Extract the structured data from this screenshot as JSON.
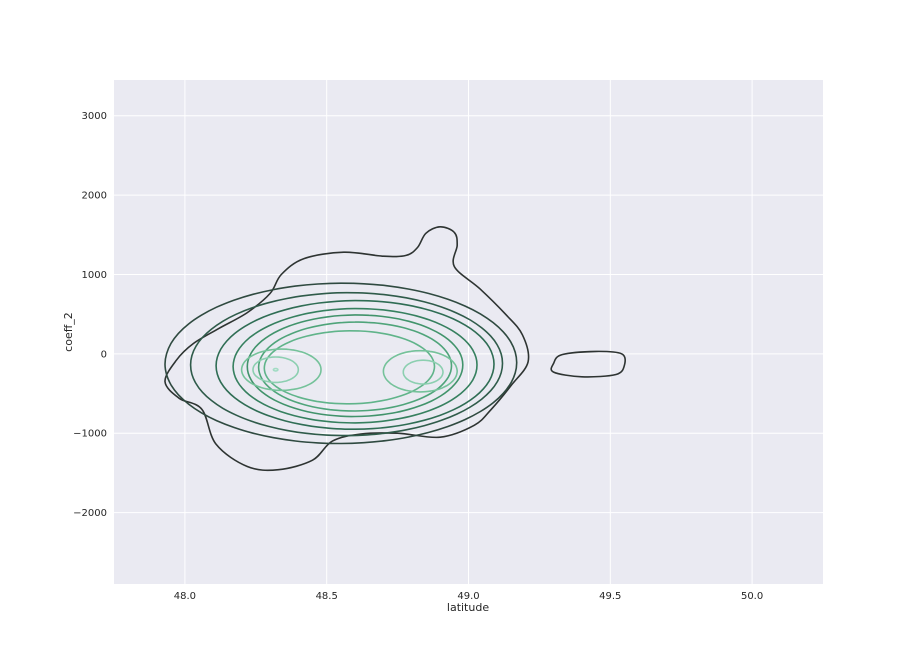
{
  "chart_data": {
    "type": "contour",
    "kind": "bivariate kde",
    "title": "",
    "xlabel": "latitude",
    "ylabel": "coeff_2",
    "xlim": [
      47.75,
      50.25
    ],
    "ylim": [
      -2900,
      3450
    ],
    "xticks": [
      48.0,
      48.5,
      49.0,
      49.5,
      50.0
    ],
    "xtick_labels": [
      "48.0",
      "48.5",
      "49.0",
      "49.5",
      "50.0"
    ],
    "yticks": [
      -2000,
      -1000,
      0,
      1000,
      2000,
      3000
    ],
    "ytick_labels": [
      "−2000",
      "−1000",
      "0",
      "1000",
      "2000",
      "3000"
    ],
    "grid": true,
    "background": "#eaeaf2",
    "grid_color": "#ffffff",
    "levels": [
      {
        "level": 1,
        "color": "#2e3432",
        "shape": "contour",
        "points": [
          [
            48.06,
            -700
          ],
          [
            47.98,
            -560
          ],
          [
            47.93,
            -350
          ],
          [
            47.97,
            -80
          ],
          [
            48.03,
            130
          ],
          [
            48.12,
            320
          ],
          [
            48.22,
            520
          ],
          [
            48.3,
            760
          ],
          [
            48.34,
            1000
          ],
          [
            48.42,
            1200
          ],
          [
            48.56,
            1280
          ],
          [
            48.7,
            1230
          ],
          [
            48.78,
            1240
          ],
          [
            48.82,
            1340
          ],
          [
            48.85,
            1520
          ],
          [
            48.9,
            1600
          ],
          [
            48.95,
            1530
          ],
          [
            48.96,
            1370
          ],
          [
            48.95,
            1100
          ],
          [
            49.04,
            820
          ],
          [
            49.13,
            500
          ],
          [
            49.19,
            240
          ],
          [
            49.21,
            -100
          ],
          [
            49.15,
            -400
          ],
          [
            49.08,
            -700
          ],
          [
            49.02,
            -900
          ],
          [
            48.9,
            -1050
          ],
          [
            48.75,
            -1000
          ],
          [
            48.62,
            -1010
          ],
          [
            48.52,
            -1100
          ],
          [
            48.45,
            -1340
          ],
          [
            48.33,
            -1460
          ],
          [
            48.22,
            -1420
          ],
          [
            48.11,
            -1140
          ]
        ]
      },
      {
        "level": 1,
        "color": "#2e3432",
        "shape": "contour",
        "points": [
          [
            49.3,
            -120
          ],
          [
            49.33,
            -10
          ],
          [
            49.45,
            30
          ],
          [
            49.54,
            0
          ],
          [
            49.55,
            -140
          ],
          [
            49.52,
            -260
          ],
          [
            49.4,
            -290
          ],
          [
            49.3,
            -230
          ]
        ]
      },
      {
        "level": 2,
        "color": "#2f4a40",
        "shape": "ellipse",
        "cx": 48.55,
        "cy": -120,
        "rx": 0.62,
        "ry": 1010,
        "tilt": 0.01
      },
      {
        "level": 3,
        "color": "#2f5b4a",
        "shape": "ellipse",
        "cx": 48.57,
        "cy": -130,
        "rx": 0.55,
        "ry": 900,
        "tilt": 0.01
      },
      {
        "level": 4,
        "color": "#2f6d54",
        "shape": "ellipse",
        "cx": 48.6,
        "cy": -140,
        "rx": 0.49,
        "ry": 810,
        "tilt": 0.01
      },
      {
        "level": 5,
        "color": "#36805f",
        "shape": "ellipse",
        "cx": 48.6,
        "cy": -150,
        "rx": 0.43,
        "ry": 720,
        "tilt": 0.01
      },
      {
        "level": 6,
        "color": "#41936b",
        "shape": "ellipse",
        "cx": 48.6,
        "cy": -150,
        "rx": 0.38,
        "ry": 640,
        "tilt": 0.01
      },
      {
        "level": 7,
        "color": "#4fa47a",
        "shape": "ellipse",
        "cx": 48.6,
        "cy": -160,
        "rx": 0.34,
        "ry": 560,
        "tilt": 0.01
      },
      {
        "level": 8,
        "color": "#60b48a",
        "shape": "ellipse",
        "cx": 48.58,
        "cy": -170,
        "rx": 0.3,
        "ry": 460,
        "tilt": 0.01
      },
      {
        "level": 9,
        "color": "#75c29a",
        "shape": "ellipse",
        "cx": 48.34,
        "cy": -200,
        "rx": 0.14,
        "ry": 260,
        "tilt": 0
      },
      {
        "level": 9,
        "color": "#75c29a",
        "shape": "ellipse",
        "cx": 48.83,
        "cy": -220,
        "rx": 0.13,
        "ry": 260,
        "tilt": 0
      },
      {
        "level": 10,
        "color": "#8ccfb0",
        "shape": "ellipse",
        "cx": 48.32,
        "cy": -200,
        "rx": 0.08,
        "ry": 160,
        "tilt": 0
      },
      {
        "level": 10,
        "color": "#8ccfb0",
        "shape": "ellipse",
        "cx": 48.84,
        "cy": -230,
        "rx": 0.07,
        "ry": 150,
        "tilt": 0
      },
      {
        "level": 11,
        "color": "#a2dcc4",
        "shape": "ellipse",
        "cx": 48.32,
        "cy": -200,
        "rx": 0.008,
        "ry": 15,
        "tilt": 0
      }
    ]
  }
}
